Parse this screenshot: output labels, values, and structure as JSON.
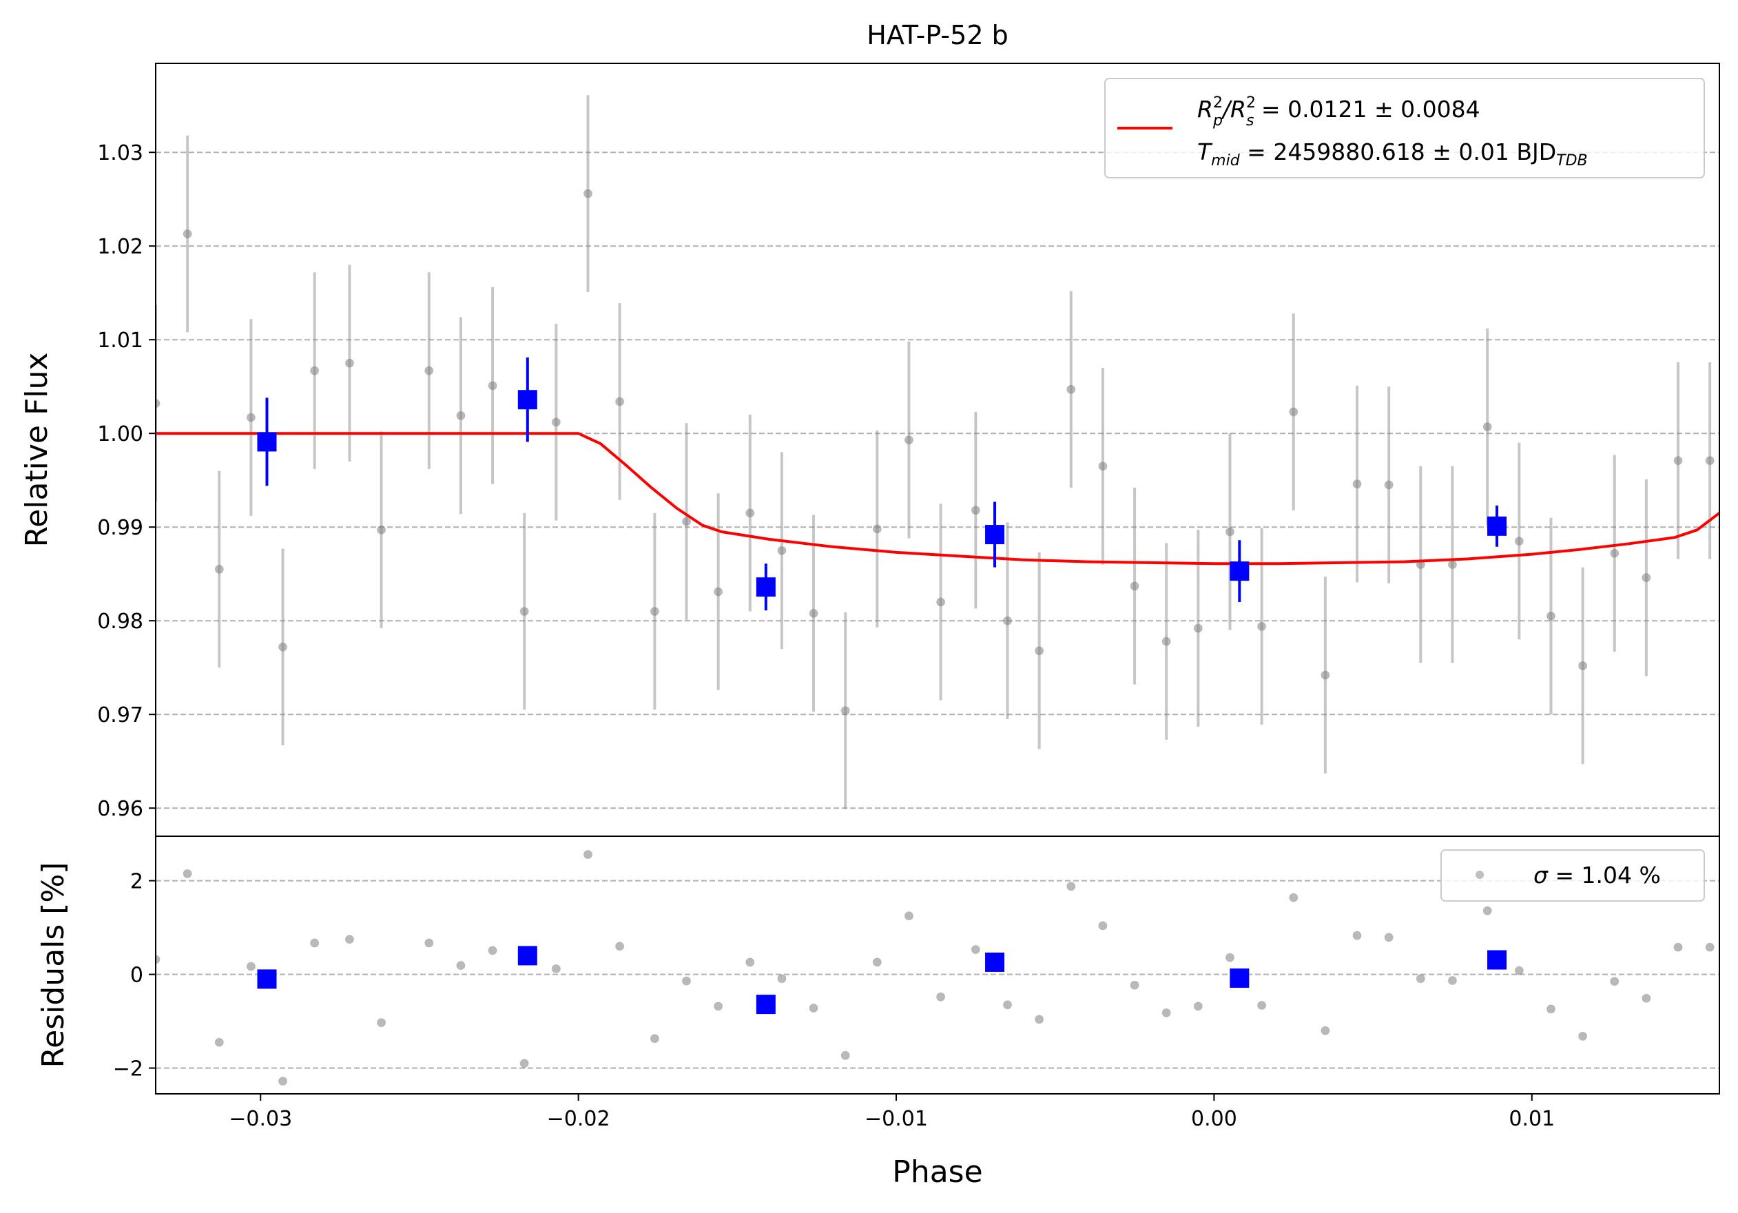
{
  "chart_data": {
    "type": "scatter",
    "title": "HAT-P-52 b",
    "xlabel": "Phase",
    "top_panel": {
      "ylabel": "Relative Flux",
      "ylim": [
        0.957,
        1.0395
      ],
      "yticks": [
        0.96,
        0.97,
        0.98,
        0.99,
        1.0,
        1.01,
        1.02,
        1.03
      ],
      "ytick_labels": [
        "0.96",
        "0.97",
        "0.98",
        "0.99",
        "1.00",
        "1.01",
        "1.02",
        "1.03"
      ],
      "grid": "y dashed",
      "legend_placement": "upper-right",
      "legend": {
        "line1_a": "R",
        "line1_a_sup": "2",
        "line1_a_sub": "p",
        "line1_b": "/R",
        "line1_b_sup": "2",
        "line1_b_sub": "s",
        "line1_c": " = 0.0121 ± 0.0084",
        "line2_a": "T",
        "line2_a_sub": "mid",
        "line2_b": " = 2459880.618 ± 0.01 BJD",
        "line2_b_sub": "TDB"
      }
    },
    "bottom_panel": {
      "ylabel": "Residuals [%]",
      "ylim": [
        -2.55,
        2.95
      ],
      "yticks": [
        -2,
        0,
        2
      ],
      "ytick_labels": [
        "−2",
        "0",
        "2"
      ],
      "grid": "y dashed",
      "legend_placement": "upper-right",
      "legend_text_a": "σ",
      "legend_text_b": " = 1.04 %"
    },
    "xlim": [
      -0.0333,
      0.0159
    ],
    "xticks": [
      -0.03,
      -0.02,
      -0.01,
      0.0,
      0.01
    ],
    "xtick_labels": [
      "−0.03",
      "−0.02",
      "−0.01",
      "0.00",
      "0.01"
    ],
    "series": [
      {
        "color": "#808080",
        "marker": "small-circle",
        "x": [
          -0.0333,
          -0.0323,
          -0.0313,
          -0.0303,
          -0.0293,
          -0.0283,
          -0.0272,
          -0.0262,
          -0.0247,
          -0.0237,
          -0.0227,
          -0.0217,
          -0.0207,
          -0.0197,
          -0.0187,
          -0.0176,
          -0.0166,
          -0.0156,
          -0.0146,
          -0.0136,
          -0.0126,
          -0.0116,
          -0.0106,
          -0.0096,
          -0.0086,
          -0.0075,
          -0.0065,
          -0.0055,
          -0.0045,
          -0.0035,
          -0.0025,
          -0.0015,
          -0.0005,
          0.0005,
          0.0015,
          0.0025,
          0.0035,
          0.0045,
          0.0055,
          0.0065,
          0.0075,
          0.0086,
          0.0096,
          0.0106,
          0.0116,
          0.0126,
          0.0136,
          0.0146,
          0.0156
        ],
        "y": [
          1.0032,
          1.0213,
          0.9855,
          1.0017,
          0.9772,
          1.0067,
          1.0075,
          0.9897,
          1.0067,
          1.0019,
          1.0051,
          0.981,
          1.0012,
          1.0256,
          1.0034,
          0.981,
          0.9906,
          0.9831,
          0.9915,
          0.9875,
          0.9808,
          0.9704,
          0.9898,
          0.9993,
          0.982,
          0.9918,
          0.98,
          0.9768,
          1.0047,
          0.9965,
          0.9837,
          0.9778,
          0.9792,
          0.9895,
          0.9794,
          1.0023,
          0.9742,
          0.9946,
          0.9945,
          0.986,
          0.986,
          1.0007,
          0.9885,
          0.9805,
          0.9752,
          0.9872,
          0.9846,
          0.9971,
          0.9971
        ],
        "yerr": [
          0.0105,
          0.0105,
          0.0105,
          0.0105,
          0.0105,
          0.0105,
          0.0105,
          0.0105,
          0.0105,
          0.0105,
          0.0105,
          0.0105,
          0.0105,
          0.0105,
          0.0105,
          0.0105,
          0.0105,
          0.0105,
          0.0105,
          0.0105,
          0.0105,
          0.0105,
          0.0105,
          0.0105,
          0.0105,
          0.0105,
          0.0105,
          0.0105,
          0.0105,
          0.0105,
          0.0105,
          0.0105,
          0.0105,
          0.0105,
          0.0105,
          0.0105,
          0.0105,
          0.0105,
          0.0105,
          0.0105,
          0.0105,
          0.0105,
          0.0105,
          0.0105,
          0.0105,
          0.0105,
          0.0105,
          0.0105,
          0.0105
        ],
        "residuals": [
          0.32,
          2.15,
          -1.45,
          0.17,
          -2.28,
          0.67,
          0.75,
          -1.03,
          0.67,
          0.19,
          0.51,
          -1.9,
          0.12,
          2.56,
          0.6,
          -1.37,
          -0.14,
          -0.68,
          0.26,
          -0.09,
          -0.72,
          -1.73,
          0.26,
          1.25,
          -0.48,
          0.53,
          -0.65,
          -0.96,
          1.88,
          1.04,
          -0.23,
          -0.82,
          -0.68,
          0.36,
          -0.66,
          1.64,
          -1.2,
          0.83,
          0.79,
          -0.09,
          -0.13,
          1.36,
          0.08,
          -0.74,
          -1.32,
          -0.15,
          -0.51,
          0.58,
          0.58
        ]
      },
      {
        "color": "#0000ff",
        "marker": "square",
        "x": [
          -0.0298,
          -0.0216,
          -0.0141,
          -0.0069,
          0.0008,
          0.0089
        ],
        "y": [
          0.9991,
          1.0036,
          0.9836,
          0.9892,
          0.9853,
          0.9901
        ],
        "yerr": [
          0.0047,
          0.0045,
          0.0025,
          0.0035,
          0.0033,
          0.0022
        ],
        "residuals": [
          -0.1,
          0.4,
          -0.64,
          0.26,
          -0.08,
          0.31
        ]
      },
      {
        "color": "#ff0000",
        "marker": "line",
        "x": [
          -0.0333,
          -0.02,
          -0.0193,
          -0.0185,
          -0.0177,
          -0.0169,
          -0.0161,
          -0.0155,
          -0.014,
          -0.012,
          -0.01,
          -0.008,
          -0.006,
          -0.004,
          -0.002,
          0.0,
          0.002,
          0.004,
          0.006,
          0.008,
          0.01,
          0.0115,
          0.013,
          0.0145,
          0.0152,
          0.0159
        ],
        "y": [
          1.0,
          1.0,
          0.9989,
          0.9966,
          0.9942,
          0.992,
          0.9902,
          0.9895,
          0.9887,
          0.9879,
          0.9873,
          0.9869,
          0.9865,
          0.9863,
          0.9862,
          0.9861,
          0.9861,
          0.9862,
          0.9863,
          0.9866,
          0.9871,
          0.9876,
          0.9882,
          0.9889,
          0.9897,
          0.9915
        ]
      }
    ]
  }
}
